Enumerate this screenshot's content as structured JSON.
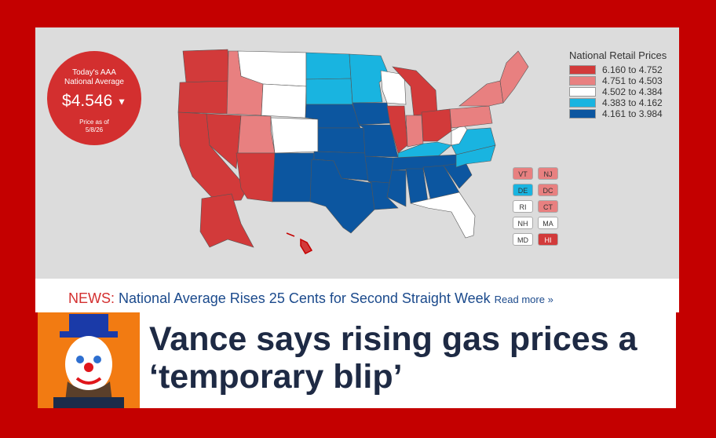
{
  "badge": {
    "line1": "Today's AAA",
    "line2": "National Average",
    "price": "$4.546",
    "caret": "▼",
    "asof1": "Price as of",
    "asof2": "5/8/26"
  },
  "legend": {
    "title": "National Retail Prices",
    "items": [
      {
        "label": "6.160 to 4.752",
        "color": "#d23a3a"
      },
      {
        "label": "4.751 to 4.503",
        "color": "#e88080"
      },
      {
        "label": "4.502 to 4.384",
        "color": "#ffffff"
      },
      {
        "label": "4.383 to 4.162",
        "color": "#19b4e0"
      },
      {
        "label": "4.161 to 3.984",
        "color": "#0c56a0"
      }
    ]
  },
  "small_states": [
    {
      "abbr": "VT",
      "color": "#e88080"
    },
    {
      "abbr": "NJ",
      "color": "#e88080"
    },
    {
      "abbr": "DE",
      "color": "#19b4e0"
    },
    {
      "abbr": "DC",
      "color": "#e88080"
    },
    {
      "abbr": "RI",
      "color": "#ffffff"
    },
    {
      "abbr": "CT",
      "color": "#e88080"
    },
    {
      "abbr": "NH",
      "color": "#ffffff"
    },
    {
      "abbr": "MA",
      "color": "#ffffff"
    },
    {
      "abbr": "MD",
      "color": "#ffffff"
    },
    {
      "abbr": "HI",
      "color": "#d23a3a"
    }
  ],
  "news": {
    "keyword": "NEWS:",
    "headline": "National Average Rises 25 Cents for Second Straight Week",
    "read_more": "Read more »"
  },
  "article": {
    "headline": "Vance says rising gas prices a ‘temporary blip’"
  },
  "colors": {
    "high": "#d23a3a",
    "mid_high": "#e88080",
    "mid": "#ffffff",
    "mid_low": "#19b4e0",
    "low": "#0c56a0"
  }
}
